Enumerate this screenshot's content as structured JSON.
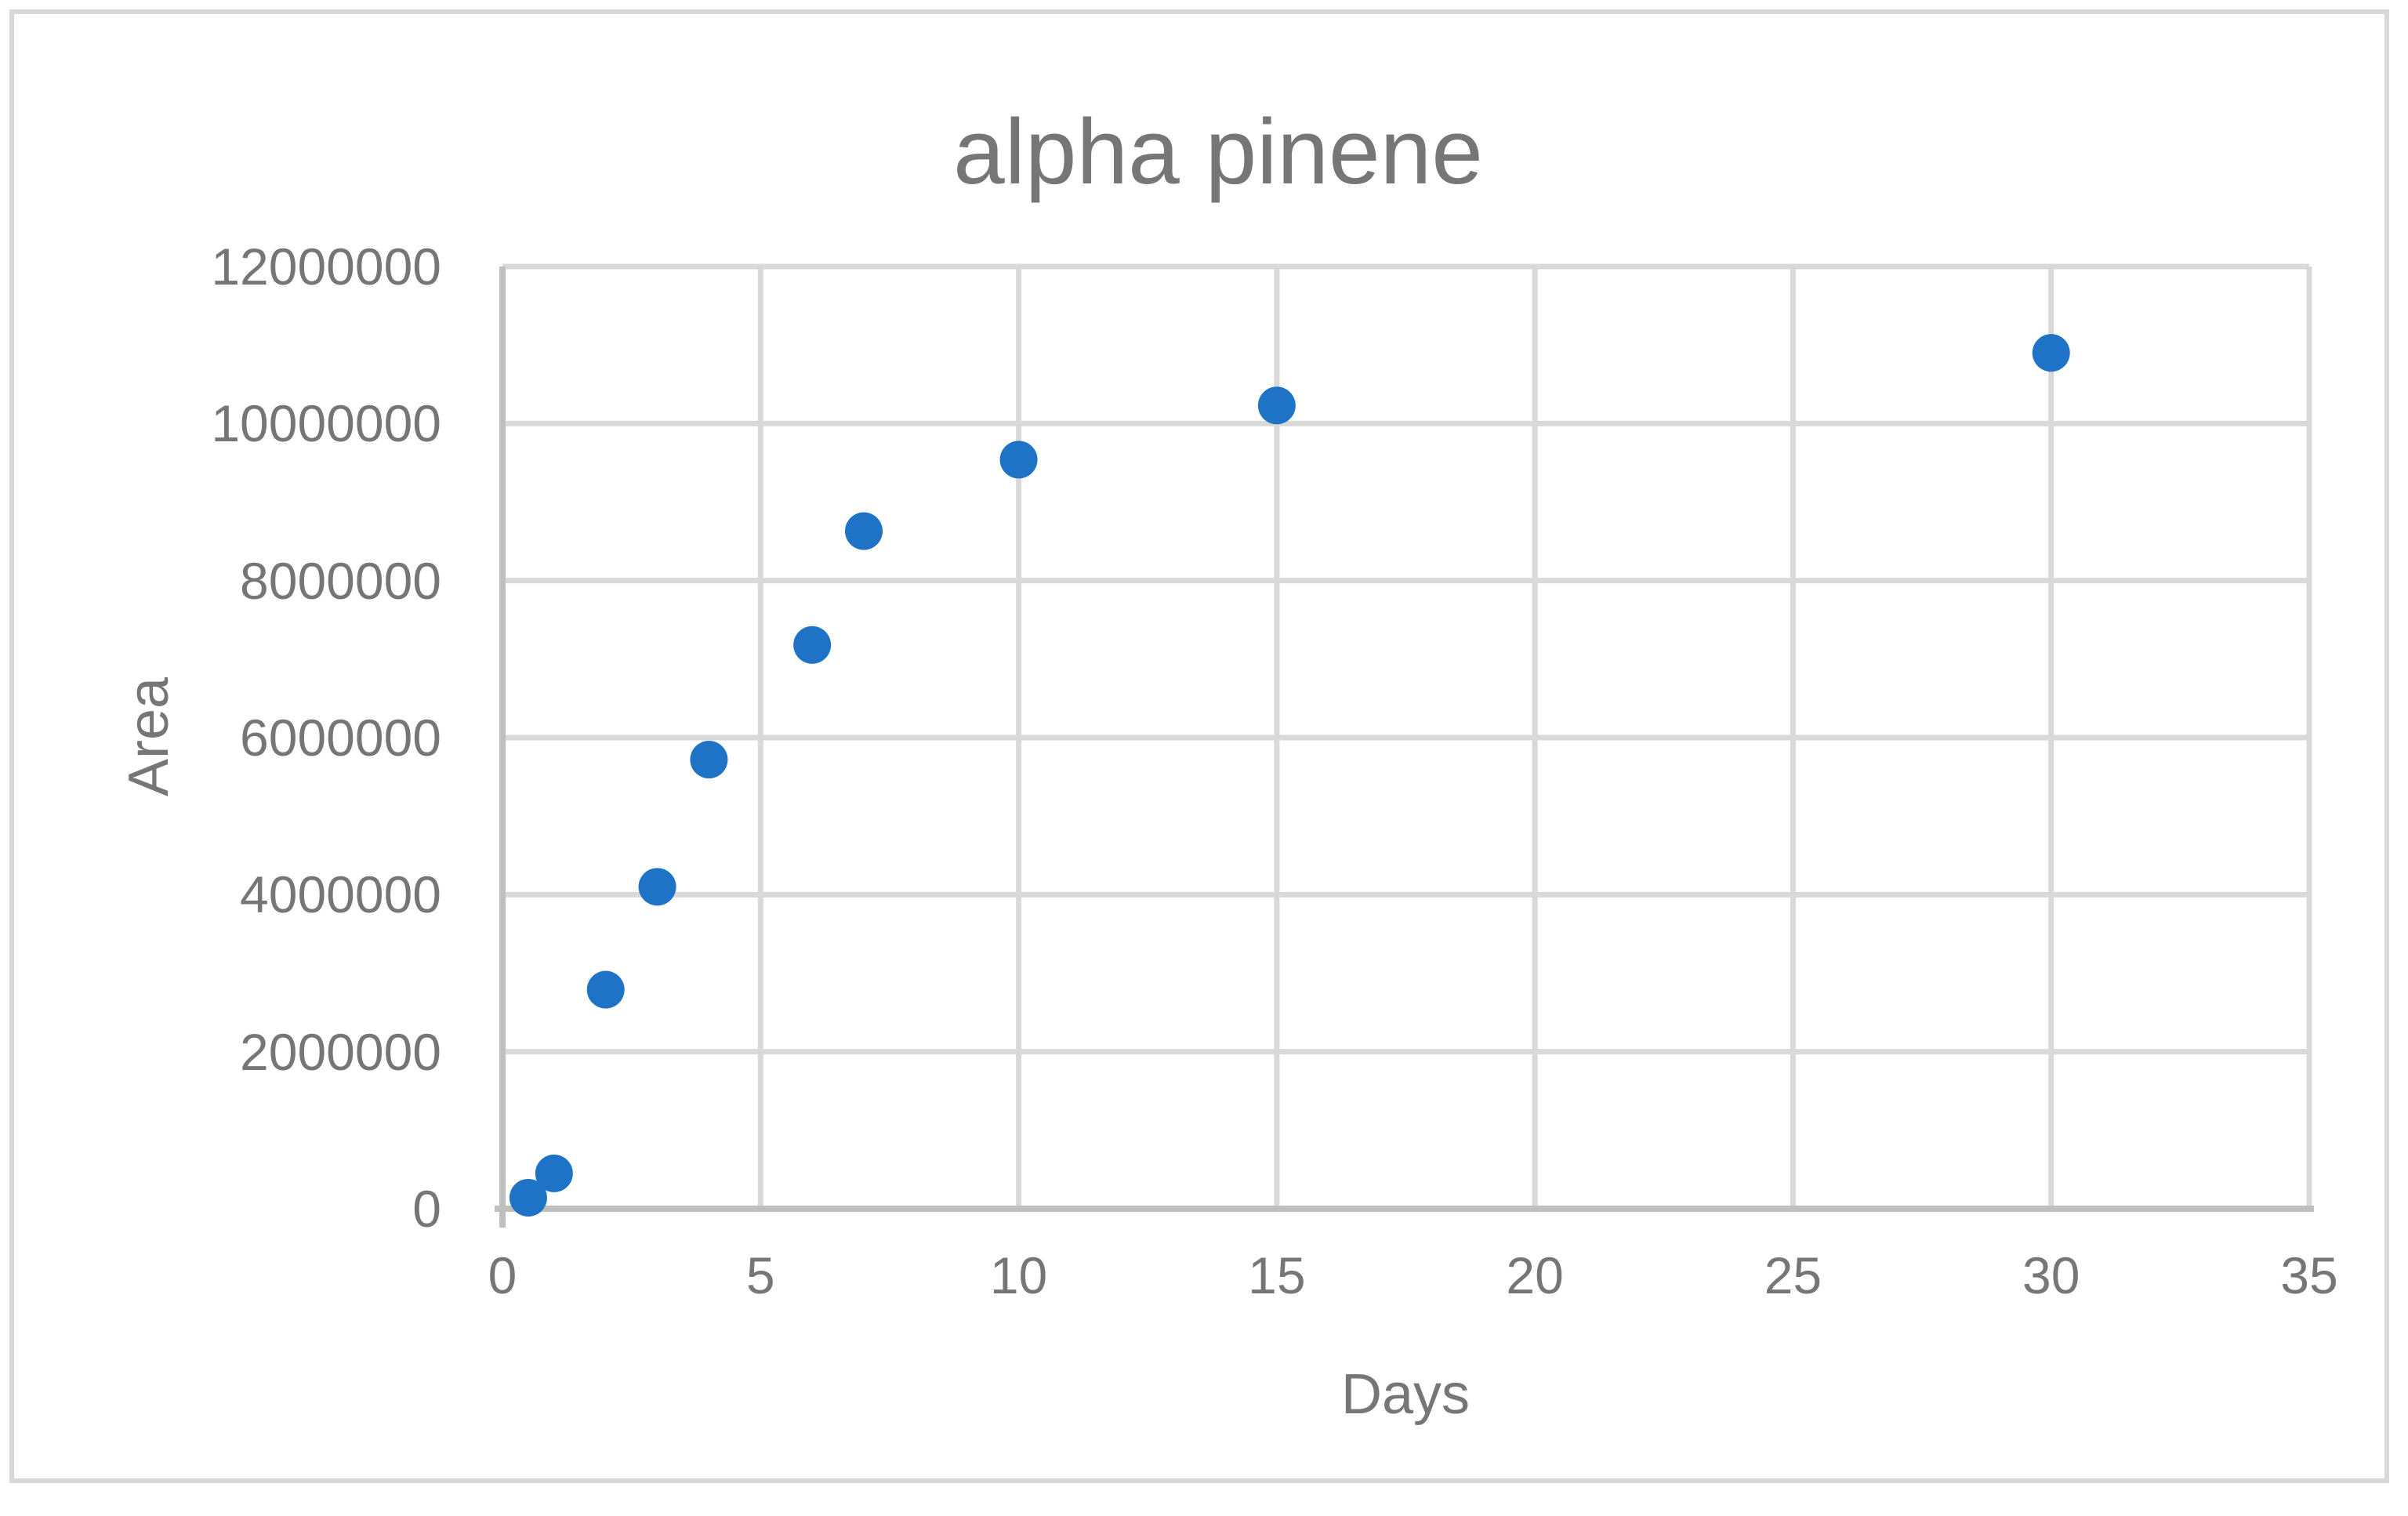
{
  "chart": {
    "title": "alpha pinene",
    "x_axis_title": "Days",
    "y_axis_title": "Area"
  },
  "chart_data": {
    "type": "scatter",
    "title": "alpha pinene",
    "xlabel": "Days",
    "ylabel": "Area",
    "x": [
      0.5,
      1,
      2,
      3,
      4,
      6,
      7,
      10,
      15,
      30
    ],
    "y": [
      140000,
      450000,
      2790000,
      4100000,
      5720000,
      7180000,
      8630000,
      9540000,
      10230000,
      10900000
    ],
    "xlim": [
      0,
      35
    ],
    "ylim": [
      0,
      12000000
    ],
    "x_ticks": [
      0,
      5,
      10,
      15,
      20,
      25,
      30,
      35
    ],
    "x_tick_labels": [
      "0",
      "5",
      "10",
      "15",
      "20",
      "25",
      "30",
      "35"
    ],
    "y_ticks": [
      0,
      2000000,
      4000000,
      6000000,
      8000000,
      10000000,
      12000000
    ],
    "y_tick_labels": [
      "0",
      "2000000",
      "4000000",
      "6000000",
      "8000000",
      "10000000",
      "12000000"
    ],
    "grid": true,
    "legend": false,
    "marker_color": "#1f73c6",
    "grid_color": "#d9d9d9",
    "axis_line_color": "#bfbfbf",
    "text_color": "#767676",
    "background_color": "#ffffff",
    "frame_border_color": "#d9d9d9"
  }
}
